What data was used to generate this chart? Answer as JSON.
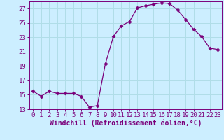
{
  "x": [
    0,
    1,
    2,
    3,
    4,
    5,
    6,
    7,
    8,
    9,
    10,
    11,
    12,
    13,
    14,
    15,
    16,
    17,
    18,
    19,
    20,
    21,
    22,
    23
  ],
  "y": [
    15.5,
    14.8,
    15.5,
    15.2,
    15.2,
    15.2,
    14.8,
    13.3,
    13.5,
    19.3,
    23.1,
    24.6,
    25.2,
    27.1,
    27.4,
    27.6,
    27.8,
    27.7,
    26.8,
    25.5,
    24.1,
    23.1,
    21.5,
    21.3
  ],
  "line_color": "#7B007B",
  "marker": "D",
  "marker_size": 2.5,
  "bg_color": "#cceeff",
  "grid_color": "#b0dde8",
  "xlabel": "Windchill (Refroidissement éolien,°C)",
  "ylim": [
    13,
    28
  ],
  "xlim": [
    -0.5,
    23.5
  ],
  "yticks": [
    13,
    15,
    17,
    19,
    21,
    23,
    25,
    27
  ],
  "xticks": [
    0,
    1,
    2,
    3,
    4,
    5,
    6,
    7,
    8,
    9,
    10,
    11,
    12,
    13,
    14,
    15,
    16,
    17,
    18,
    19,
    20,
    21,
    22,
    23
  ],
  "font_size": 6.5,
  "label_font_size": 7.0
}
